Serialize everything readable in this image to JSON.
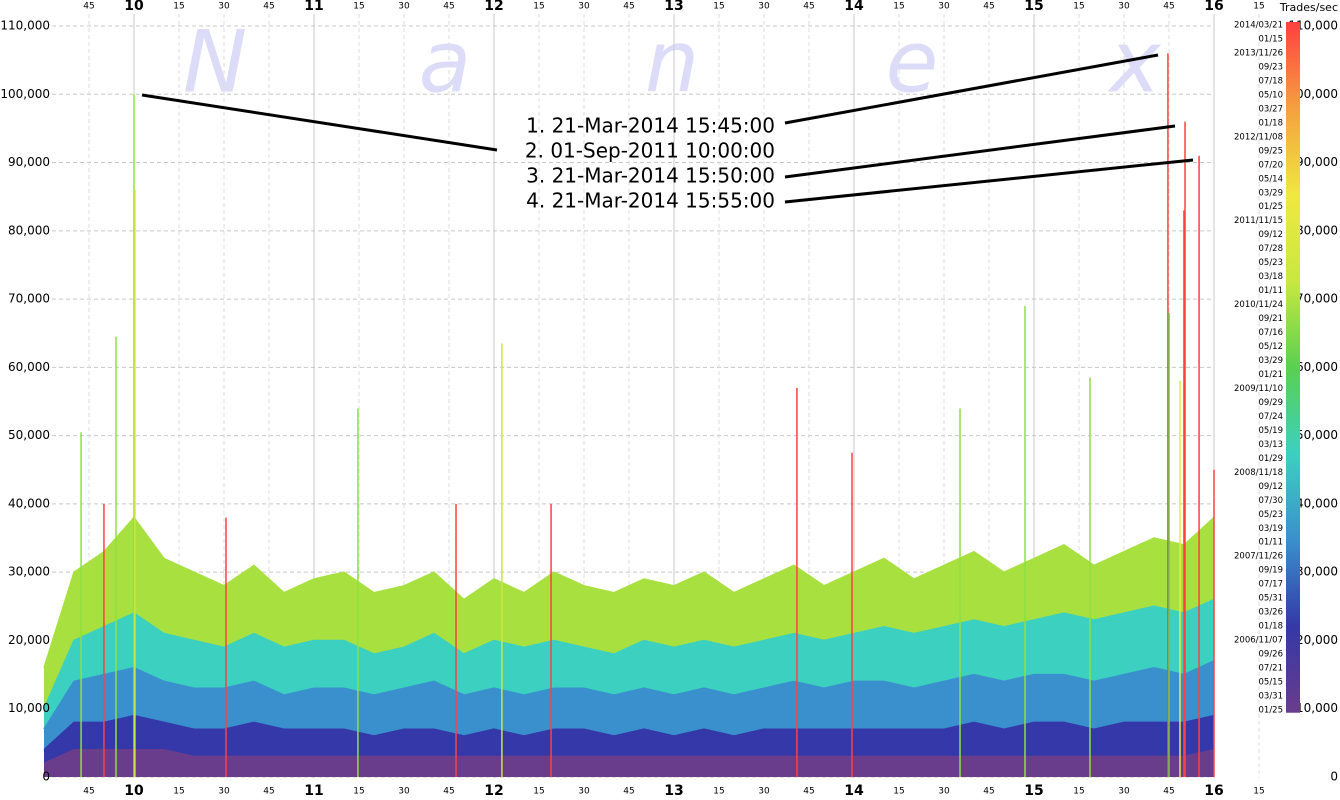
{
  "chart_data": {
    "type": "area",
    "watermark": [
      "N",
      "a",
      "n",
      "e",
      "x"
    ],
    "annotations": [
      "1. 21-Mar-2014 15:45:00",
      "2. 01-Sep-2011 10:00:00",
      "3. 21-Mar-2014 15:50:00",
      "4. 21-Mar-2014 15:55:00"
    ],
    "xlim": [
      9.5,
      16.4
    ],
    "xticks": [
      {
        "value": 9.75,
        "label": "45"
      },
      10,
      {
        "value": 10.25,
        "label": "15"
      },
      {
        "value": 10.5,
        "label": "30"
      },
      {
        "value": 10.75,
        "label": "45"
      },
      11,
      {
        "value": 11.25,
        "label": "15"
      },
      {
        "value": 11.5,
        "label": "30"
      },
      {
        "value": 11.75,
        "label": "45"
      },
      12,
      {
        "value": 12.25,
        "label": "15"
      },
      {
        "value": 12.5,
        "label": "30"
      },
      {
        "value": 12.75,
        "label": "45"
      },
      13,
      {
        "value": 13.25,
        "label": "15"
      },
      {
        "value": 13.5,
        "label": "30"
      },
      {
        "value": 13.75,
        "label": "45"
      },
      14,
      {
        "value": 14.25,
        "label": "15"
      },
      {
        "value": 14.5,
        "label": "30"
      },
      {
        "value": 14.75,
        "label": "45"
      },
      15,
      {
        "value": 15.25,
        "label": "15"
      },
      {
        "value": 15.5,
        "label": "30"
      },
      {
        "value": 15.75,
        "label": "45"
      },
      16,
      {
        "value": 16.25,
        "label": "15"
      }
    ],
    "ylim": [
      0,
      110000
    ],
    "yticks": [
      0,
      {
        "value": 10000,
        "label": "10,000"
      },
      {
        "value": 20000,
        "label": "20,000"
      },
      {
        "value": 30000,
        "label": "30,000"
      },
      {
        "value": 40000,
        "label": "40,000"
      },
      {
        "value": 50000,
        "label": "50,000"
      },
      {
        "value": 60000,
        "label": "60,000"
      },
      {
        "value": 70000,
        "label": "70,000"
      },
      {
        "value": 80000,
        "label": "80,000"
      },
      {
        "value": 90000,
        "label": "90,000"
      },
      {
        "value": 100000,
        "label": "100,000"
      },
      {
        "value": 110000,
        "label": "110,000"
      }
    ],
    "grid": true,
    "x": [
      9.5,
      9.6667,
      9.8333,
      10.0,
      10.1667,
      10.3333,
      10.5,
      10.6667,
      10.8333,
      11.0,
      11.1667,
      11.3333,
      11.5,
      11.6667,
      11.8333,
      12.0,
      12.1667,
      12.3333,
      12.5,
      12.6667,
      12.8333,
      13.0,
      13.1667,
      13.3333,
      13.5,
      13.6667,
      13.8333,
      14.0,
      14.1667,
      14.3333,
      14.5,
      14.6667,
      14.8333,
      15.0,
      15.1667,
      15.3333,
      15.5,
      15.6667,
      15.8333,
      16.0
    ],
    "series": [
      {
        "color": "#a8e040",
        "values": [
          16000,
          30000,
          33000,
          38000,
          32000,
          30000,
          28000,
          31000,
          27000,
          29000,
          30000,
          27000,
          28000,
          30000,
          26000,
          29000,
          27000,
          30000,
          28000,
          27000,
          29000,
          28000,
          30000,
          27000,
          29000,
          31000,
          28000,
          30000,
          32000,
          29000,
          31000,
          33000,
          30000,
          32000,
          34000,
          31000,
          33000,
          35000,
          34000,
          38000
        ]
      },
      {
        "color": "#3cd0c0",
        "values": [
          10000,
          20000,
          22000,
          24000,
          21000,
          20000,
          19000,
          21000,
          19000,
          20000,
          20000,
          18000,
          19000,
          21000,
          18000,
          20000,
          19000,
          20000,
          19000,
          18000,
          20000,
          19000,
          20000,
          19000,
          20000,
          21000,
          20000,
          21000,
          22000,
          21000,
          22000,
          23000,
          22000,
          23000,
          24000,
          23000,
          24000,
          25000,
          24000,
          26000
        ]
      },
      {
        "color": "#3a90cc",
        "values": [
          7000,
          14000,
          15000,
          16000,
          14000,
          13000,
          13000,
          14000,
          12000,
          13000,
          13000,
          12000,
          13000,
          14000,
          12000,
          13000,
          12000,
          13000,
          13000,
          12000,
          13000,
          12000,
          13000,
          12000,
          13000,
          14000,
          13000,
          14000,
          14000,
          13000,
          14000,
          15000,
          14000,
          15000,
          15000,
          14000,
          15000,
          16000,
          15000,
          17000
        ]
      },
      {
        "color": "#3438a8",
        "values": [
          4000,
          8000,
          8000,
          9000,
          8000,
          7000,
          7000,
          8000,
          7000,
          7000,
          7000,
          6000,
          7000,
          7000,
          6000,
          7000,
          6000,
          7000,
          7000,
          6000,
          7000,
          6000,
          7000,
          6000,
          7000,
          7000,
          7000,
          7000,
          7000,
          7000,
          7000,
          8000,
          7000,
          8000,
          8000,
          7000,
          8000,
          8000,
          8000,
          9000
        ]
      },
      {
        "color": "#6a3c8c",
        "values": [
          2000,
          4000,
          4000,
          4000,
          4000,
          3000,
          3000,
          3000,
          3000,
          3000,
          3000,
          3000,
          3000,
          3000,
          3000,
          3000,
          3000,
          3000,
          3000,
          3000,
          3000,
          3000,
          3000,
          3000,
          3000,
          3000,
          3000,
          3000,
          3000,
          3000,
          3000,
          3000,
          3000,
          3000,
          3000,
          3000,
          3000,
          3000,
          3000,
          4000
        ]
      }
    ],
    "spikes": [
      {
        "x": 9.706,
        "value": 50500,
        "color": "#8ee040"
      },
      {
        "x": 9.833,
        "value": 40000,
        "color": "#ff4040"
      },
      {
        "x": 9.9,
        "value": 64500,
        "color": "#8ee040"
      },
      {
        "x": 10.0,
        "value": 100000,
        "color": "#8ee040"
      },
      {
        "x": 10.005,
        "value": 86000,
        "color": "#c8e840"
      },
      {
        "x": 10.511,
        "value": 38000,
        "color": "#ff4040"
      },
      {
        "x": 11.244,
        "value": 54000,
        "color": "#8ee040"
      },
      {
        "x": 11.789,
        "value": 40000,
        "color": "#ff4040"
      },
      {
        "x": 12.044,
        "value": 63500,
        "color": "#c8e840"
      },
      {
        "x": 12.317,
        "value": 40000,
        "color": "#ff4040"
      },
      {
        "x": 13.683,
        "value": 57000,
        "color": "#ff4040"
      },
      {
        "x": 13.989,
        "value": 47500,
        "color": "#ff4040"
      },
      {
        "x": 14.589,
        "value": 54000,
        "color": "#8ee040"
      },
      {
        "x": 14.95,
        "value": 69000,
        "color": "#8ee040"
      },
      {
        "x": 15.311,
        "value": 58500,
        "color": "#8ee040"
      },
      {
        "x": 15.744,
        "value": 106000,
        "color": "#ff4040"
      },
      {
        "x": 15.75,
        "value": 68000,
        "color": "#5ad050"
      },
      {
        "x": 15.811,
        "value": 58000,
        "color": "#f0e840"
      },
      {
        "x": 15.833,
        "value": 83000,
        "color": "#ff4040"
      },
      {
        "x": 15.839,
        "value": 96000,
        "color": "#ff4040"
      },
      {
        "x": 15.917,
        "value": 91000,
        "color": "#ff4040"
      },
      {
        "x": 16.0,
        "value": 45000,
        "color": "#ff4040"
      }
    ],
    "colorbar": {
      "title": "Trades/sec",
      "colors": [
        "#6a3c8c",
        "#3438a8",
        "#3a90cc",
        "#3cd0c0",
        "#5ad050",
        "#c8e840",
        "#f0e840",
        "#f5a040",
        "#ff4040"
      ],
      "dates": [
        "2014/03/21",
        "01/15",
        "2013/11/26",
        "09/23",
        "07/18",
        "05/10",
        "03/27",
        "01/18",
        "2012/11/08",
        "09/25",
        "07/20",
        "05/14",
        "03/29",
        "01/25",
        "2011/11/15",
        "09/12",
        "07/28",
        "05/23",
        "03/18",
        "01/11",
        "2010/11/24",
        "09/21",
        "07/16",
        "05/12",
        "03/29",
        "01/21",
        "2009/11/10",
        "09/29",
        "07/24",
        "05/19",
        "03/13",
        "01/29",
        "2008/11/18",
        "09/12",
        "07/30",
        "05/23",
        "03/19",
        "01/11",
        "2007/11/26",
        "09/19",
        "07/17",
        "05/31",
        "03/26",
        "01/18",
        "2006/11/07",
        "09/26",
        "07/21",
        "05/15",
        "03/31",
        "01/25"
      ]
    }
  }
}
